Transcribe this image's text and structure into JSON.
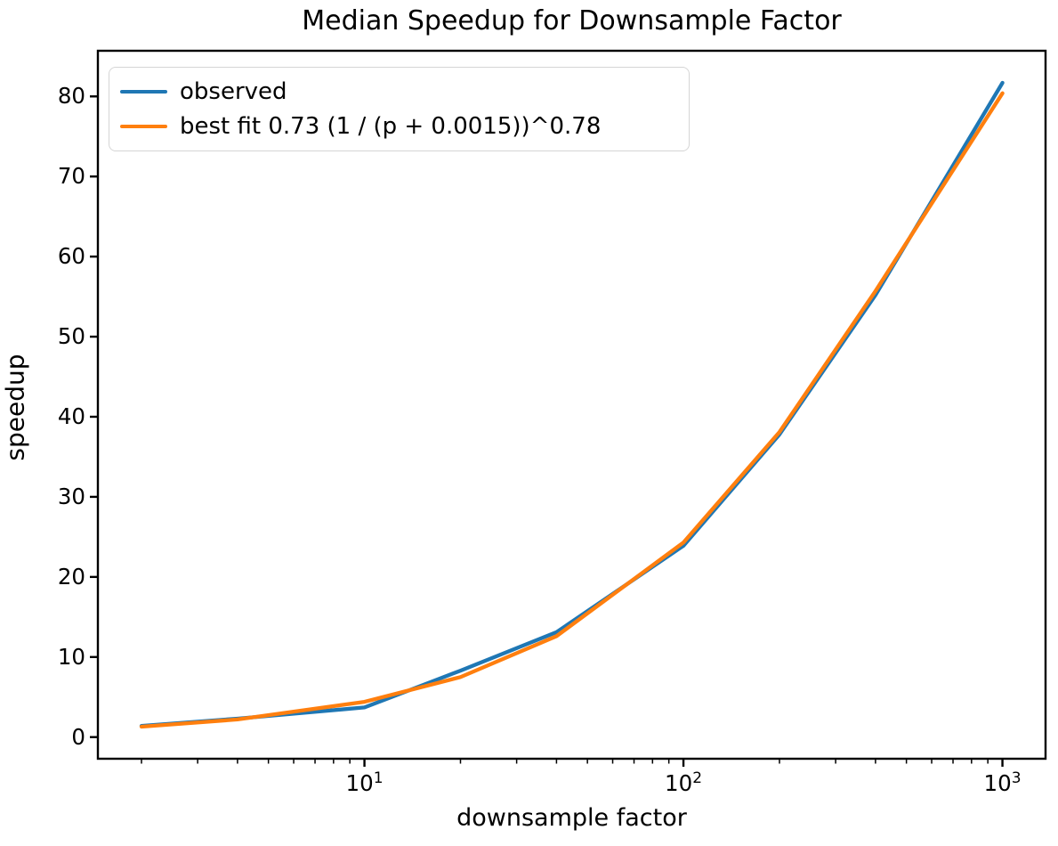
{
  "chart_data": {
    "type": "line",
    "title": "Median Speedup for Downsample Factor",
    "xlabel": "downsample factor",
    "ylabel": "speedup",
    "x_scale": "log",
    "x": [
      2,
      4,
      10,
      20,
      40,
      100,
      200,
      400,
      1000
    ],
    "series": [
      {
        "name": "observed",
        "color": "#1f77b4",
        "values": [
          1.4,
          2.3,
          3.7,
          8.3,
          13.1,
          23.9,
          37.8,
          55.2,
          81.7
        ]
      },
      {
        "name": "best fit 0.73 (1 / (p + 0.0015))^0.78",
        "color": "#ff7f0e",
        "values": [
          1.3,
          2.2,
          4.4,
          7.5,
          12.6,
          24.3,
          38.1,
          55.7,
          80.4
        ]
      }
    ],
    "xlim": [
      1.46,
      1365
    ],
    "ylim": [
      -2.7,
      85.7
    ],
    "yticks": [
      0,
      10,
      20,
      30,
      40,
      50,
      60,
      70,
      80
    ],
    "xticks": [
      {
        "value": 10,
        "label": "10^1"
      },
      {
        "value": 100,
        "label": "10^2"
      },
      {
        "value": 1000,
        "label": "10^3"
      }
    ],
    "grid": false,
    "legend_position": "upper left",
    "axis_color": "#000000",
    "background_color": "#ffffff"
  }
}
